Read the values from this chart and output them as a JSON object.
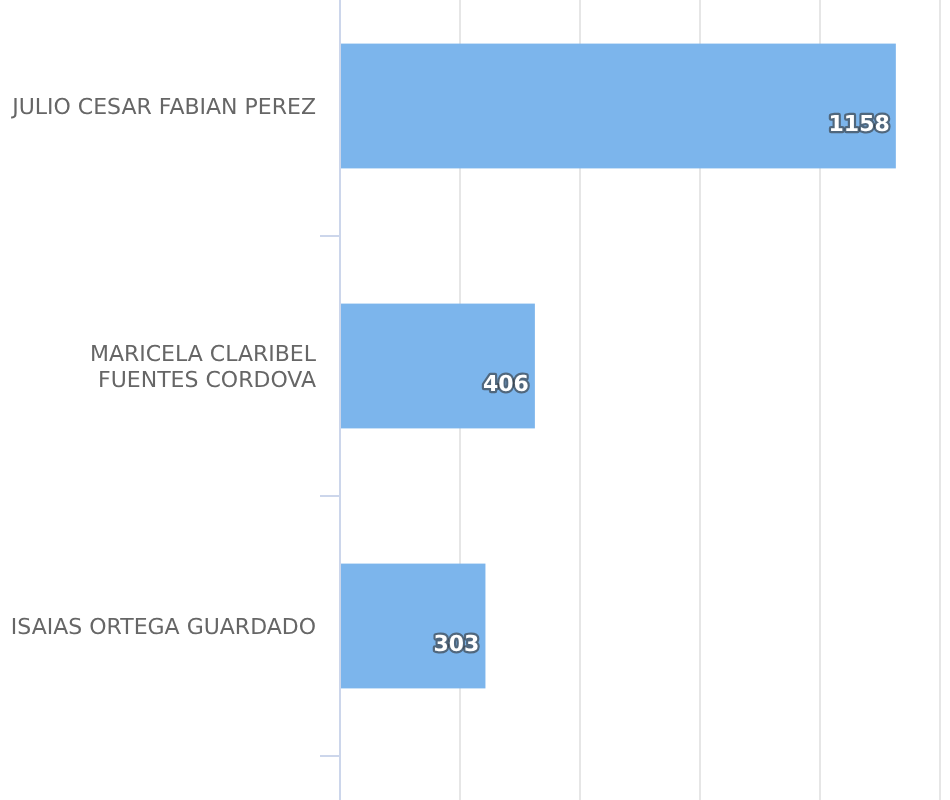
{
  "chart_data": {
    "type": "bar",
    "orientation": "horizontal",
    "categories": [
      "JULIO CESAR FABIAN PEREZ",
      "MARICELA CLARIBEL FUENTES CORDOVA",
      "ISAIAS ORTEGA GUARDADO"
    ],
    "values": [
      1158,
      406,
      303
    ],
    "color": "#7cb5ec",
    "data_labels": true,
    "xlim": [
      0,
      1250
    ],
    "xticks": [
      {
        "value": 0,
        "label": null
      },
      {
        "value": 250,
        "label": null
      },
      {
        "value": 500,
        "label": null
      },
      {
        "value": 750,
        "label": null
      },
      {
        "value": 1000,
        "label": null
      },
      {
        "value": 1250,
        "label": null
      }
    ],
    "grid": "x",
    "tick_labels": "y"
  }
}
